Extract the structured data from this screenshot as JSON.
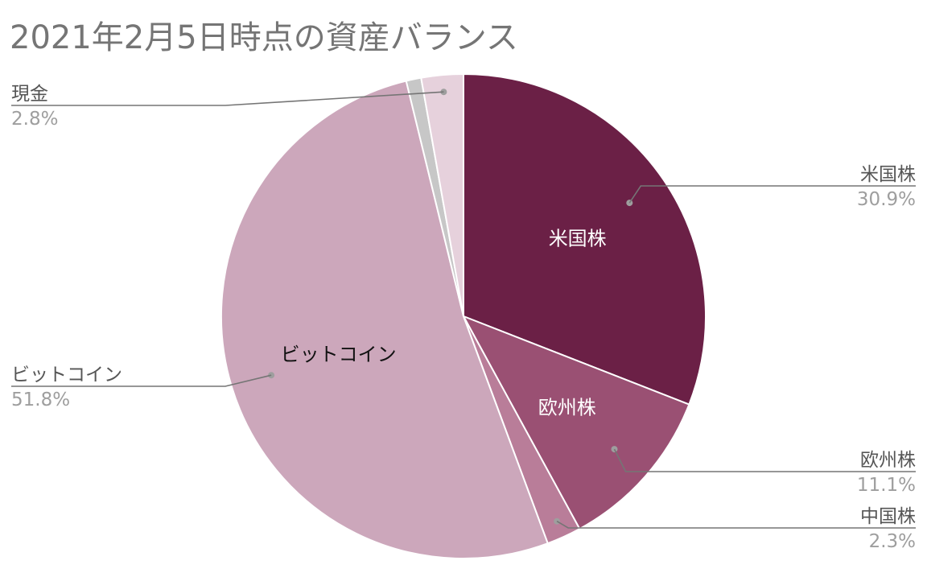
{
  "chart_data": {
    "type": "pie",
    "title": "2021年2月5日時点の資産バランス",
    "slices": [
      {
        "name": "米国株",
        "value": 30.9,
        "label": "30.9%",
        "color": "#6b2046",
        "inner_label_color": "#ffffff",
        "inner_label": true,
        "callout_side": "right"
      },
      {
        "name": "欧州株",
        "value": 11.1,
        "label": "11.1%",
        "color": "#9a5073",
        "inner_label_color": "#ffffff",
        "inner_label": true,
        "callout_side": "right"
      },
      {
        "name": "中国株",
        "value": 2.3,
        "label": "2.3%",
        "color": "#b97d99",
        "inner_label": false,
        "callout_side": "right"
      },
      {
        "name": "ビットコイン",
        "value": 51.8,
        "label": "51.8%",
        "color": "#cca7bb",
        "inner_label_color": "#111111",
        "inner_label": true,
        "callout_side": "left"
      },
      {
        "name": "",
        "value": 1.0,
        "label": "",
        "color": "#c7c7c7",
        "inner_label": false,
        "callout_side": "none"
      },
      {
        "name": "現金",
        "value": 2.8,
        "label": "2.8%",
        "color": "#e6d1dc",
        "inner_label": false,
        "callout_side": "left"
      }
    ],
    "start_direction": "top",
    "direction": "clockwise",
    "legend": "none"
  }
}
